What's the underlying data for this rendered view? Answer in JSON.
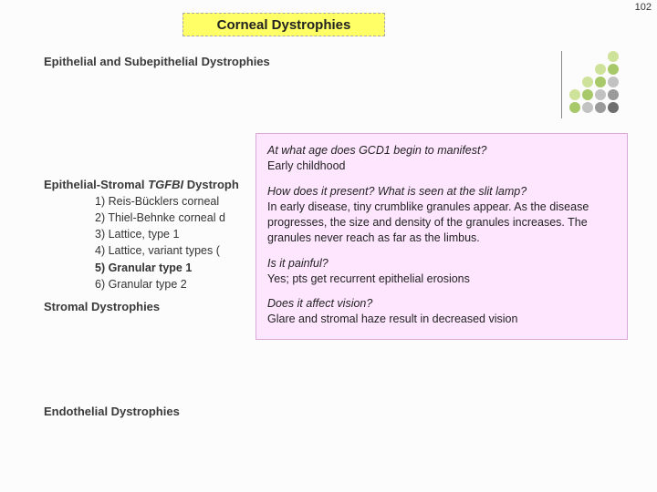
{
  "page_number": "102",
  "title": "Corneal Dystrophies",
  "sections": {
    "h1": "Epithelial and Subepithelial Dystrophies",
    "h2_prefix": "Epithelial-Stromal ",
    "h2_italic": "TGFBI",
    "h2_suffix": " Dystroph",
    "h3": "Stromal Dystrophies",
    "h4": "Endothelial Dystrophies"
  },
  "list": {
    "i1": "1) Reis-Bücklers corneal",
    "i2": "2) Thiel-Behnke corneal d",
    "i3": "3) Lattice, type 1",
    "i4": "4) Lattice, variant types (",
    "i5": "5) Granular type 1",
    "i6": "6) Granular type 2"
  },
  "popup": {
    "q1": "At what age does GCD1 begin to manifest?",
    "a1": "Early childhood",
    "q2": "How does it present? What is seen at the slit lamp?",
    "a2": "In early disease, tiny crumblike granules appear. As the disease progresses, the size and density of the granules increases. The granules never reach as far as the limbus.",
    "q3": "Is it painful?",
    "a3": "Yes; pts get recurrent epithelial erosions",
    "q4": "Does it affect vision?",
    "a4": "Glare and stromal haze result in decreased vision"
  },
  "dots": {
    "colors": {
      "c1": "#cfe29a",
      "c2": "#a8c96a",
      "c3": "#c2c2c2",
      "c4": "#9a9a9a",
      "c5": "#6e6e6e"
    }
  }
}
